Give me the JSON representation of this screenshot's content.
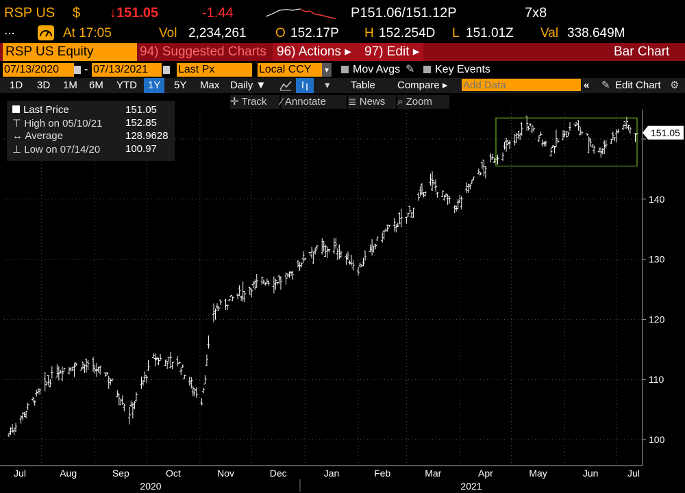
{
  "quote": {
    "ticker": "RSP US",
    "currency": "$",
    "last": "↓151.05",
    "change": "-1.44",
    "bid_ask": "P151.06/151.12P",
    "size": "7x8"
  },
  "stats": {
    "dots": "...",
    "at": "At 17:05",
    "vol_label": "Vol",
    "vol": "2,234,261",
    "open_label": "O",
    "open": "152.17P",
    "high_label": "H",
    "high": "152.254D",
    "low_label": "L",
    "low": "151.01Z",
    "val_label": "Val",
    "val": "338.649M"
  },
  "titlebar": {
    "security": "RSP US Equity",
    "suggested": "94) Suggested Charts",
    "actions": "96) Actions ▸",
    "edit": "97) Edit ▸",
    "chart_type": "Bar Chart"
  },
  "inputs": {
    "start_date": "07/13/2020",
    "end_date": "07/13/2021",
    "field": "Last Px",
    "ccy": "Local CCY",
    "mov_avgs": "Mov Avgs",
    "key_events": "Key Events"
  },
  "toolbar": {
    "periods": [
      "1D",
      "3D",
      "1M",
      "6M",
      "YTD",
      "1Y",
      "5Y",
      "Max"
    ],
    "selected_period": "1Y",
    "frequency": "Daily ▼",
    "table": "Table",
    "compare": "Compare ▸",
    "add_data_placeholder": "Add Data",
    "edit_chart": "Edit Chart"
  },
  "toolbar2": {
    "track": "Track",
    "annotate": "Annotate",
    "news": "News",
    "zoom": "Zoom"
  },
  "legend": {
    "last_label": "Last Price",
    "last_value": "151.05",
    "high_label": "High on 05/10/21",
    "high_value": "152.85",
    "avg_label": "Average",
    "avg_value": "128.9628",
    "low_label": "Low on 07/14/20",
    "low_value": "100.97"
  },
  "colors": {
    "background": "#000000",
    "accent_orange": "#ff9d00",
    "title_red": "#8b0a14",
    "price_red": "#ff2a2a",
    "highlight_box": "#7fd321",
    "bars": "#ffffff"
  },
  "chart_data": {
    "type": "bar",
    "title": "",
    "xlabel": "",
    "ylabel": "",
    "ylim": [
      97,
      158
    ],
    "y_ticks": [
      100,
      110,
      120,
      130,
      140,
      150
    ],
    "y_tick_labels": [
      "100",
      "110",
      "120",
      "130",
      "140",
      ""
    ],
    "x_tick_labels": [
      "Jul",
      "Aug",
      "Sep",
      "Oct",
      "Nov",
      "Dec",
      "Jan",
      "Feb",
      "Mar",
      "Apr",
      "May",
      "Jun",
      "Jul"
    ],
    "year_labels": [
      "2020",
      "2021"
    ],
    "last_price_label": "151.05",
    "grid": true,
    "series": [
      {
        "frequency": "daily",
        "x": [
          "2020-07-13",
          "2020-07-27",
          "2020-08-10",
          "2020-08-24",
          "2020-09-08",
          "2020-09-21",
          "2020-10-05",
          "2020-10-19",
          "2020-11-02",
          "2020-11-09",
          "2020-11-23",
          "2020-12-07",
          "2020-12-21",
          "2021-01-04",
          "2021-01-19",
          "2021-02-01",
          "2021-02-16",
          "2021-03-01",
          "2021-03-15",
          "2021-03-29",
          "2021-04-12",
          "2021-04-26",
          "2021-05-10",
          "2021-05-24",
          "2021-06-07",
          "2021-06-21",
          "2021-07-06",
          "2021-07-13"
        ],
        "values": [
          101.0,
          106.5,
          111.5,
          112.5,
          111.0,
          104.5,
          113.5,
          113.0,
          106.5,
          121.5,
          124.0,
          126.5,
          126.5,
          131.5,
          132.0,
          128.5,
          134.5,
          137.0,
          143.0,
          138.5,
          144.5,
          148.0,
          152.5,
          148.5,
          152.5,
          148.0,
          152.5,
          151.05
        ]
      }
    ],
    "annotations": [
      {
        "type": "highlight-box",
        "x_start": "2021-04-22",
        "x_end": "2021-07-13",
        "y_low": 145.5,
        "y_high": 153.5
      }
    ]
  }
}
